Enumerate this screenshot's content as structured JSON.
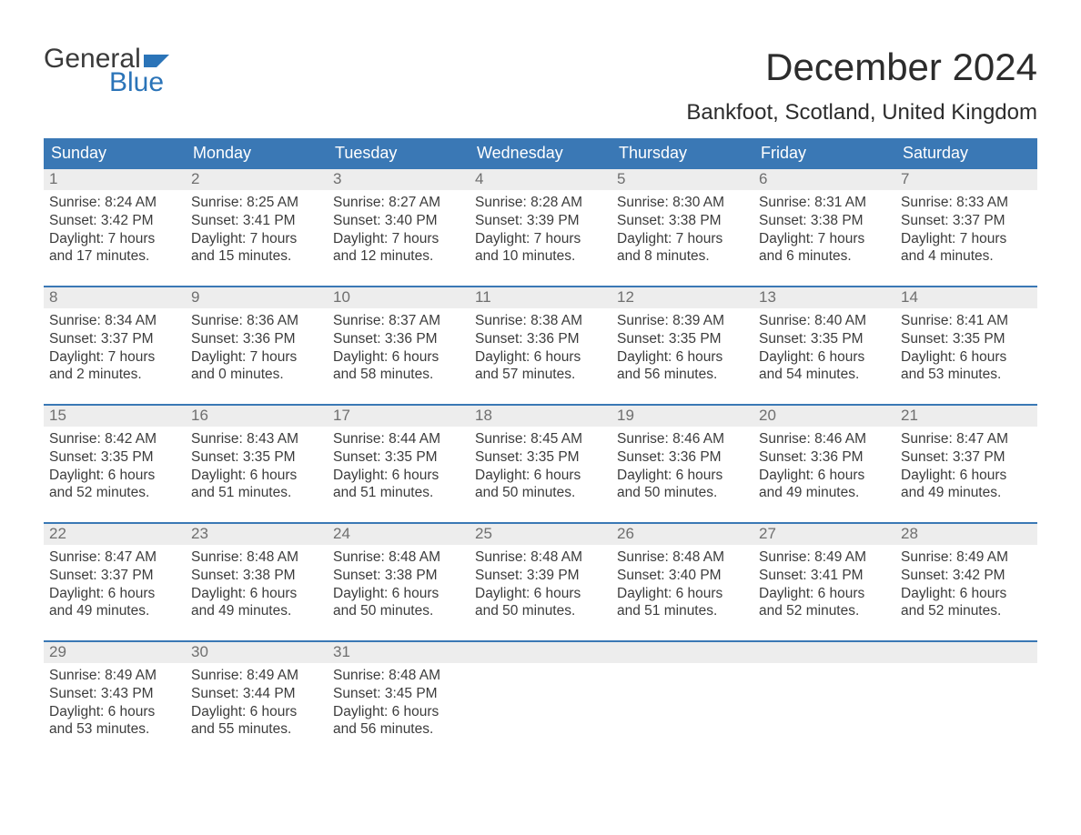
{
  "logo": {
    "text_top": "General",
    "text_bottom": "Blue",
    "accent_color": "#2b74b8"
  },
  "title": "December 2024",
  "location": "Bankfoot, Scotland, United Kingdom",
  "colors": {
    "header_bg": "#3a78b5",
    "header_text": "#ffffff",
    "week_divider": "#3a78b5",
    "daynum_bg": "#ededed",
    "daynum_text": "#6f6f6f",
    "body_text": "#3c3c3c",
    "page_bg": "#ffffff"
  },
  "typography": {
    "title_fontsize": 42,
    "location_fontsize": 24,
    "day_header_fontsize": 18,
    "daynum_fontsize": 17,
    "cell_fontsize": 15.5,
    "font_family": "Arial"
  },
  "day_headers": [
    "Sunday",
    "Monday",
    "Tuesday",
    "Wednesday",
    "Thursday",
    "Friday",
    "Saturday"
  ],
  "weeks": [
    [
      {
        "n": "1",
        "sr": "Sunrise: 8:24 AM",
        "ss": "Sunset: 3:42 PM",
        "dl1": "Daylight: 7 hours",
        "dl2": "and 17 minutes."
      },
      {
        "n": "2",
        "sr": "Sunrise: 8:25 AM",
        "ss": "Sunset: 3:41 PM",
        "dl1": "Daylight: 7 hours",
        "dl2": "and 15 minutes."
      },
      {
        "n": "3",
        "sr": "Sunrise: 8:27 AM",
        "ss": "Sunset: 3:40 PM",
        "dl1": "Daylight: 7 hours",
        "dl2": "and 12 minutes."
      },
      {
        "n": "4",
        "sr": "Sunrise: 8:28 AM",
        "ss": "Sunset: 3:39 PM",
        "dl1": "Daylight: 7 hours",
        "dl2": "and 10 minutes."
      },
      {
        "n": "5",
        "sr": "Sunrise: 8:30 AM",
        "ss": "Sunset: 3:38 PM",
        "dl1": "Daylight: 7 hours",
        "dl2": "and 8 minutes."
      },
      {
        "n": "6",
        "sr": "Sunrise: 8:31 AM",
        "ss": "Sunset: 3:38 PM",
        "dl1": "Daylight: 7 hours",
        "dl2": "and 6 minutes."
      },
      {
        "n": "7",
        "sr": "Sunrise: 8:33 AM",
        "ss": "Sunset: 3:37 PM",
        "dl1": "Daylight: 7 hours",
        "dl2": "and 4 minutes."
      }
    ],
    [
      {
        "n": "8",
        "sr": "Sunrise: 8:34 AM",
        "ss": "Sunset: 3:37 PM",
        "dl1": "Daylight: 7 hours",
        "dl2": "and 2 minutes."
      },
      {
        "n": "9",
        "sr": "Sunrise: 8:36 AM",
        "ss": "Sunset: 3:36 PM",
        "dl1": "Daylight: 7 hours",
        "dl2": "and 0 minutes."
      },
      {
        "n": "10",
        "sr": "Sunrise: 8:37 AM",
        "ss": "Sunset: 3:36 PM",
        "dl1": "Daylight: 6 hours",
        "dl2": "and 58 minutes."
      },
      {
        "n": "11",
        "sr": "Sunrise: 8:38 AM",
        "ss": "Sunset: 3:36 PM",
        "dl1": "Daylight: 6 hours",
        "dl2": "and 57 minutes."
      },
      {
        "n": "12",
        "sr": "Sunrise: 8:39 AM",
        "ss": "Sunset: 3:35 PM",
        "dl1": "Daylight: 6 hours",
        "dl2": "and 56 minutes."
      },
      {
        "n": "13",
        "sr": "Sunrise: 8:40 AM",
        "ss": "Sunset: 3:35 PM",
        "dl1": "Daylight: 6 hours",
        "dl2": "and 54 minutes."
      },
      {
        "n": "14",
        "sr": "Sunrise: 8:41 AM",
        "ss": "Sunset: 3:35 PM",
        "dl1": "Daylight: 6 hours",
        "dl2": "and 53 minutes."
      }
    ],
    [
      {
        "n": "15",
        "sr": "Sunrise: 8:42 AM",
        "ss": "Sunset: 3:35 PM",
        "dl1": "Daylight: 6 hours",
        "dl2": "and 52 minutes."
      },
      {
        "n": "16",
        "sr": "Sunrise: 8:43 AM",
        "ss": "Sunset: 3:35 PM",
        "dl1": "Daylight: 6 hours",
        "dl2": "and 51 minutes."
      },
      {
        "n": "17",
        "sr": "Sunrise: 8:44 AM",
        "ss": "Sunset: 3:35 PM",
        "dl1": "Daylight: 6 hours",
        "dl2": "and 51 minutes."
      },
      {
        "n": "18",
        "sr": "Sunrise: 8:45 AM",
        "ss": "Sunset: 3:35 PM",
        "dl1": "Daylight: 6 hours",
        "dl2": "and 50 minutes."
      },
      {
        "n": "19",
        "sr": "Sunrise: 8:46 AM",
        "ss": "Sunset: 3:36 PM",
        "dl1": "Daylight: 6 hours",
        "dl2": "and 50 minutes."
      },
      {
        "n": "20",
        "sr": "Sunrise: 8:46 AM",
        "ss": "Sunset: 3:36 PM",
        "dl1": "Daylight: 6 hours",
        "dl2": "and 49 minutes."
      },
      {
        "n": "21",
        "sr": "Sunrise: 8:47 AM",
        "ss": "Sunset: 3:37 PM",
        "dl1": "Daylight: 6 hours",
        "dl2": "and 49 minutes."
      }
    ],
    [
      {
        "n": "22",
        "sr": "Sunrise: 8:47 AM",
        "ss": "Sunset: 3:37 PM",
        "dl1": "Daylight: 6 hours",
        "dl2": "and 49 minutes."
      },
      {
        "n": "23",
        "sr": "Sunrise: 8:48 AM",
        "ss": "Sunset: 3:38 PM",
        "dl1": "Daylight: 6 hours",
        "dl2": "and 49 minutes."
      },
      {
        "n": "24",
        "sr": "Sunrise: 8:48 AM",
        "ss": "Sunset: 3:38 PM",
        "dl1": "Daylight: 6 hours",
        "dl2": "and 50 minutes."
      },
      {
        "n": "25",
        "sr": "Sunrise: 8:48 AM",
        "ss": "Sunset: 3:39 PM",
        "dl1": "Daylight: 6 hours",
        "dl2": "and 50 minutes."
      },
      {
        "n": "26",
        "sr": "Sunrise: 8:48 AM",
        "ss": "Sunset: 3:40 PM",
        "dl1": "Daylight: 6 hours",
        "dl2": "and 51 minutes."
      },
      {
        "n": "27",
        "sr": "Sunrise: 8:49 AM",
        "ss": "Sunset: 3:41 PM",
        "dl1": "Daylight: 6 hours",
        "dl2": "and 52 minutes."
      },
      {
        "n": "28",
        "sr": "Sunrise: 8:49 AM",
        "ss": "Sunset: 3:42 PM",
        "dl1": "Daylight: 6 hours",
        "dl2": "and 52 minutes."
      }
    ],
    [
      {
        "n": "29",
        "sr": "Sunrise: 8:49 AM",
        "ss": "Sunset: 3:43 PM",
        "dl1": "Daylight: 6 hours",
        "dl2": "and 53 minutes."
      },
      {
        "n": "30",
        "sr": "Sunrise: 8:49 AM",
        "ss": "Sunset: 3:44 PM",
        "dl1": "Daylight: 6 hours",
        "dl2": "and 55 minutes."
      },
      {
        "n": "31",
        "sr": "Sunrise: 8:48 AM",
        "ss": "Sunset: 3:45 PM",
        "dl1": "Daylight: 6 hours",
        "dl2": "and 56 minutes."
      },
      {
        "n": "",
        "sr": "",
        "ss": "",
        "dl1": "",
        "dl2": ""
      },
      {
        "n": "",
        "sr": "",
        "ss": "",
        "dl1": "",
        "dl2": ""
      },
      {
        "n": "",
        "sr": "",
        "ss": "",
        "dl1": "",
        "dl2": ""
      },
      {
        "n": "",
        "sr": "",
        "ss": "",
        "dl1": "",
        "dl2": ""
      }
    ]
  ]
}
